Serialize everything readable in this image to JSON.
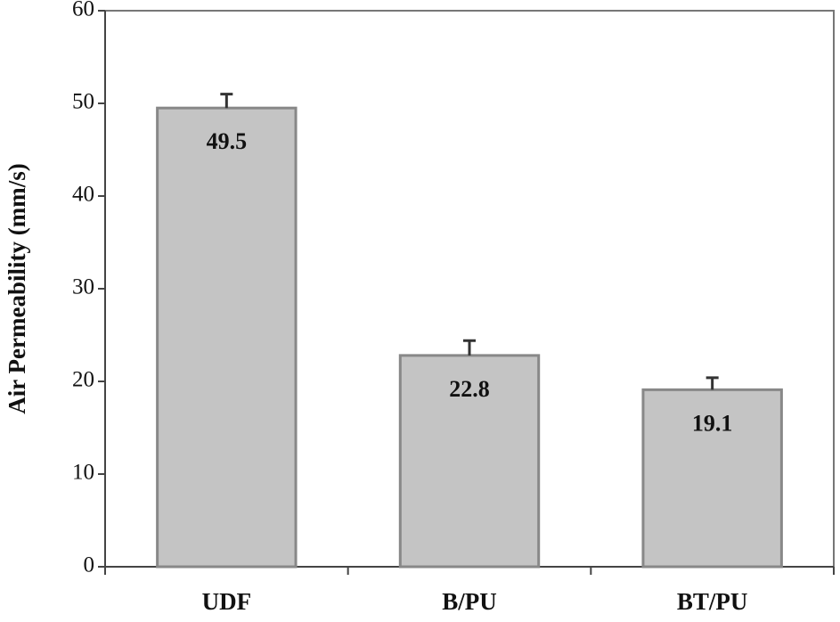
{
  "chart_data": {
    "type": "bar",
    "y_label": "Air Permeability (mm/s)",
    "categories": [
      "UDF",
      "B/PU",
      "BT/PU"
    ],
    "values": [
      49.5,
      22.8,
      19.1
    ],
    "errors": [
      1.5,
      1.6,
      1.3
    ],
    "color": "#c4c4c4",
    "ylim": [
      0,
      60
    ],
    "yticks": [
      0,
      10,
      20,
      30,
      40,
      50,
      60
    ],
    "grid": false
  }
}
